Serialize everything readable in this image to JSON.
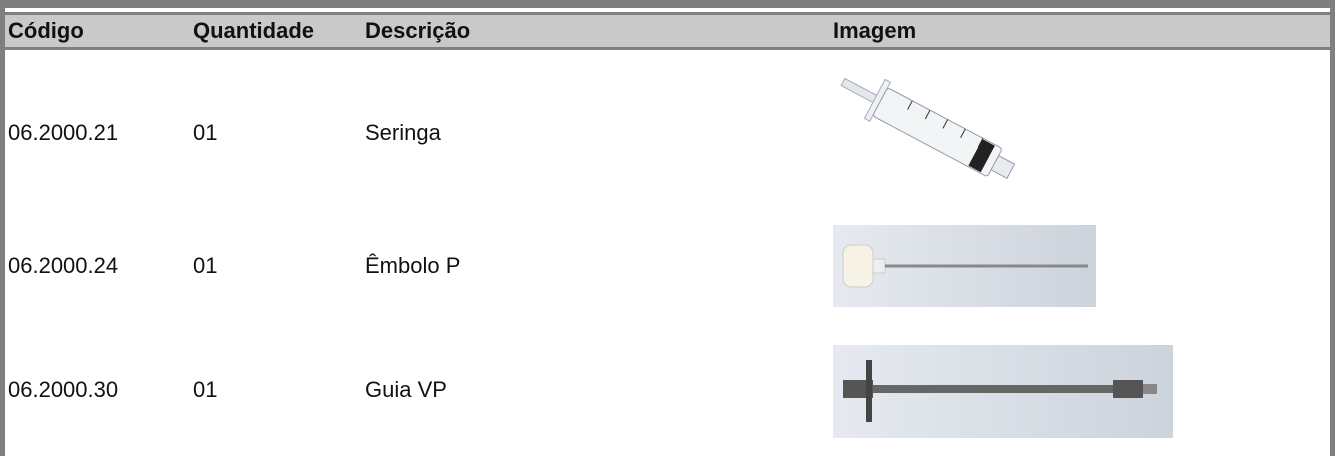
{
  "table": {
    "headers": [
      "Código",
      "Quantidade",
      "Descrição",
      "Imagem"
    ],
    "rows": [
      [
        "06.2000.21",
        "01",
        "Seringa"
      ],
      [
        "06.2000.24",
        "01",
        "Êmbolo P"
      ],
      [
        "06.2000.30",
        "01",
        "Guia VP"
      ]
    ]
  }
}
